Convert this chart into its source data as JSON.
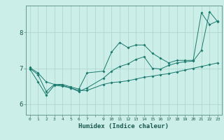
{
  "title": "",
  "xlabel": "Humidex (Indice chaleur)",
  "background_color": "#cceee8",
  "line_color": "#1a7a6e",
  "grid_color": "#b0d8d0",
  "xlim": [
    -0.5,
    23.5
  ],
  "ylim": [
    5.7,
    8.75
  ],
  "xtick_labels": [
    "0",
    "1",
    "2",
    "3",
    "4",
    "5",
    "6",
    "7",
    "",
    "9",
    "10",
    "11",
    "12",
    "13",
    "14",
    "15",
    "16",
    "17",
    "18",
    "19",
    "20",
    "21",
    "22",
    "23"
  ],
  "yticks": [
    6,
    7,
    8
  ],
  "series1_x": [
    0,
    1,
    2,
    3,
    4,
    5,
    6,
    7,
    9,
    10,
    11,
    12,
    13,
    14,
    15,
    16,
    17,
    18,
    19,
    20,
    21,
    22,
    23
  ],
  "series1_y": [
    7.02,
    6.87,
    6.62,
    6.55,
    6.55,
    6.48,
    6.42,
    6.87,
    6.92,
    7.45,
    7.72,
    7.58,
    7.65,
    7.65,
    7.42,
    7.28,
    7.15,
    7.22,
    7.22,
    7.22,
    8.55,
    8.22,
    8.32
  ],
  "series2_x": [
    0,
    1,
    2,
    3,
    4,
    5,
    6,
    7,
    9,
    10,
    11,
    12,
    13,
    14,
    15,
    16,
    17,
    18,
    19,
    20,
    21,
    22,
    23
  ],
  "series2_y": [
    6.98,
    6.62,
    6.25,
    6.52,
    6.5,
    6.45,
    6.38,
    6.38,
    6.55,
    6.6,
    6.62,
    6.65,
    6.7,
    6.75,
    6.78,
    6.82,
    6.85,
    6.9,
    6.95,
    7.0,
    7.05,
    7.1,
    7.15
  ],
  "series3_x": [
    0,
    1,
    2,
    3,
    4,
    5,
    6,
    7,
    9,
    10,
    11,
    12,
    13,
    14,
    15,
    16,
    17,
    18,
    19,
    20,
    21,
    22,
    23
  ],
  "series3_y": [
    7.0,
    6.82,
    6.35,
    6.55,
    6.52,
    6.45,
    6.35,
    6.45,
    6.72,
    6.92,
    7.05,
    7.12,
    7.25,
    7.32,
    7.0,
    6.98,
    7.08,
    7.15,
    7.18,
    7.2,
    7.5,
    8.58,
    8.3
  ]
}
